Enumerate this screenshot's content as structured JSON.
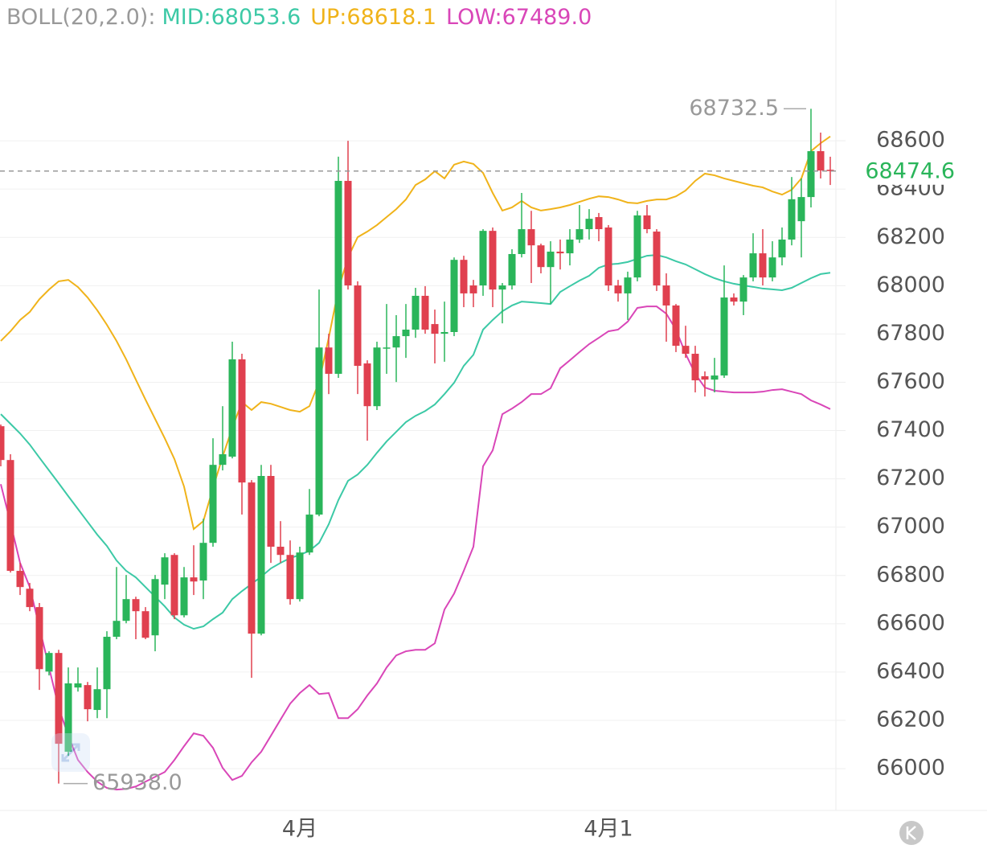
{
  "chart_data": {
    "type": "candlestick",
    "title": "BOLL(20,2.0):",
    "categories": [
      null,
      null,
      null,
      null,
      null,
      null,
      null,
      null,
      null,
      null,
      null,
      null,
      null,
      null,
      null,
      null,
      null,
      null,
      null,
      null,
      null,
      null,
      null,
      null,
      null,
      null,
      null,
      null,
      null,
      null,
      null,
      "4月",
      null,
      null,
      null,
      null,
      null,
      null,
      null,
      null,
      null,
      null,
      null,
      null,
      null,
      null,
      null,
      null,
      null,
      null,
      null,
      null,
      null,
      null,
      null,
      null,
      null,
      null,
      null,
      null,
      null,
      null,
      null,
      "4月1",
      null,
      null,
      null,
      null,
      null,
      null,
      null,
      null,
      null,
      null,
      null,
      null,
      null,
      null,
      null,
      null,
      null,
      null,
      null,
      null,
      null,
      null,
      null
    ],
    "open": [
      67418,
      67278,
      66819,
      66745,
      66669,
      66402,
      66479,
      66070,
      66336,
      66346,
      66243,
      66329,
      66546,
      66612,
      66702,
      66652,
      66552,
      66762,
      66885,
      66635,
      66792,
      66779,
      66935,
      67258,
      67292,
      67695,
      67185,
      66559,
      67212,
      66919,
      66885,
      66702,
      66895,
      67052,
      67744,
      67635,
      68434,
      68001,
      67678,
      67501,
      67741,
      67744,
      67791,
      67818,
      67958,
      67841,
      67801,
      67808,
      68107,
      68001,
      68001,
      68227,
      67984,
      68001,
      68131,
      68234,
      68167,
      68077,
      68141,
      68134,
      68191,
      68234,
      68284,
      68241,
      68001,
      67968,
      68034,
      68291,
      68224,
      68001,
      67918,
      67751,
      67718,
      67625,
      67611,
      67628,
      67951,
      67934,
      68034,
      68134,
      68034,
      68117,
      68191,
      68267,
      68367,
      68557,
      68480
    ],
    "high": [
      67425,
      67302,
      66852,
      66769,
      66686,
      66486,
      66492,
      66419,
      66419,
      66359,
      66419,
      66569,
      66835,
      66802,
      66712,
      66669,
      66802,
      66892,
      66892,
      66835,
      66925,
      67035,
      67368,
      67501,
      67768,
      67718,
      67195,
      67258,
      67258,
      67025,
      66945,
      66919,
      67158,
      67984,
      67801,
      68534,
      68600,
      68018,
      67691,
      67768,
      67924,
      67878,
      67924,
      67991,
      67998,
      67901,
      67934,
      68117,
      68124,
      68024,
      68234,
      68241,
      68011,
      68151,
      68384,
      68310,
      68174,
      68184,
      68191,
      68234,
      68334,
      68317,
      68301,
      68251,
      68024,
      68058,
      68310,
      68334,
      68234,
      68051,
      67924,
      67834,
      67751,
      67645,
      67701,
      68084,
      67968,
      68044,
      68217,
      68234,
      68184,
      68241,
      68450,
      68444,
      68732.5,
      68634,
      68534
    ],
    "low": [
      67252,
      66812,
      66719,
      66652,
      66326,
      66386,
      65938,
      66053,
      66319,
      66196,
      66209,
      66209,
      66536,
      66602,
      66536,
      66536,
      66486,
      66702,
      66619,
      66626,
      66719,
      66702,
      66919,
      67235,
      67285,
      67052,
      66376,
      66552,
      66852,
      66852,
      66679,
      66692,
      66885,
      67045,
      67551,
      67618,
      67984,
      67551,
      67358,
      67485,
      67635,
      67601,
      67701,
      67784,
      67801,
      67678,
      67685,
      67791,
      67911,
      67911,
      67958,
      67911,
      67844,
      67984,
      68117,
      68011,
      68051,
      67924,
      68067,
      68084,
      68177,
      68191,
      68184,
      67978,
      67934,
      67858,
      68018,
      68217,
      67978,
      67768,
      67725,
      67701,
      67558,
      67541,
      67558,
      67618,
      67918,
      67878,
      68018,
      68001,
      68018,
      68084,
      68167,
      68117,
      68324,
      68444,
      68417
    ],
    "close": [
      67278,
      66819,
      66752,
      66669,
      66412,
      66479,
      66103,
      66353,
      66353,
      66246,
      66329,
      66546,
      66612,
      66702,
      66652,
      66542,
      66785,
      66875,
      66635,
      66792,
      66775,
      66935,
      67258,
      67302,
      67695,
      67185,
      66559,
      67212,
      66919,
      66885,
      66702,
      66895,
      67052,
      67744,
      67635,
      68434,
      68001,
      67668,
      67501,
      67744,
      67744,
      67791,
      67818,
      67958,
      67818,
      67801,
      67808,
      68107,
      67968,
      67968,
      68227,
      67984,
      68001,
      68131,
      68234,
      68167,
      68077,
      68141,
      68134,
      68191,
      68234,
      68277,
      68234,
      68001,
      67968,
      68034,
      68291,
      68234,
      68001,
      67918,
      67751,
      67718,
      67608,
      67611,
      67628,
      67951,
      67934,
      68034,
      68134,
      68034,
      68117,
      68191,
      68358,
      68367,
      68557,
      68477,
      68474.6
    ],
    "up_color": "#2ab55a",
    "down_color": "#e0404f",
    "series": [
      {
        "name": "MID:",
        "color": "#3cc9a6",
        "last_label": "68053.6",
        "values": [
          67468,
          67428,
          67388,
          67342,
          67288,
          67235,
          67182,
          67128,
          67075,
          67022,
          66969,
          66922,
          66862,
          66819,
          66792,
          66752,
          66712,
          66672,
          66626,
          66596,
          66579,
          66589,
          66619,
          66646,
          66702,
          66735,
          66765,
          66795,
          66829,
          66852,
          66872,
          66885,
          66902,
          66935,
          67012,
          67112,
          67192,
          67218,
          67258,
          67308,
          67355,
          67395,
          67435,
          67461,
          67481,
          67508,
          67551,
          67598,
          67668,
          67714,
          67818,
          67858,
          67894,
          67918,
          67934,
          67931,
          67928,
          67924,
          67974,
          67998,
          68021,
          68041,
          68074,
          68088,
          68091,
          68098,
          68111,
          68124,
          68127,
          68117,
          68101,
          68088,
          68068,
          68048,
          68031,
          68018,
          68008,
          68001,
          67995,
          67988,
          67985,
          67981,
          67991,
          68011,
          68031,
          68048,
          68053.6
        ]
      },
      {
        "name": "UP:",
        "color": "#f0b31a",
        "last_label": "68618.1",
        "values": [
          67771,
          67811,
          67858,
          67891,
          67944,
          67984,
          68018,
          68024,
          67994,
          67951,
          67898,
          67838,
          67771,
          67695,
          67611,
          67528,
          67448,
          67368,
          67282,
          67168,
          66992,
          67025,
          67162,
          67292,
          67411,
          67518,
          67485,
          67518,
          67511,
          67498,
          67485,
          67478,
          67501,
          67601,
          67784,
          67984,
          68117,
          68201,
          68224,
          68251,
          68284,
          68317,
          68357,
          68417,
          68440,
          68474,
          68444,
          68501,
          68514,
          68504,
          68467,
          68384,
          68311,
          68324,
          68351,
          68324,
          68311,
          68317,
          68324,
          68334,
          68347,
          68360,
          68370,
          68367,
          68357,
          68344,
          68341,
          68351,
          68357,
          68357,
          68370,
          68394,
          68434,
          68464,
          68457,
          68444,
          68434,
          68424,
          68414,
          68407,
          68390,
          68377,
          68397,
          68444,
          68557,
          68590,
          68618.1
        ]
      },
      {
        "name": "LOW:",
        "color": "#d946b8",
        "last_label": "67489.0",
        "values": [
          67178,
          67018,
          66852,
          66752,
          66586,
          66419,
          66253,
          66136,
          66036,
          65986,
          65946,
          65920,
          65913,
          65916,
          65926,
          65946,
          65966,
          65986,
          66036,
          66093,
          66146,
          66136,
          66086,
          66003,
          65953,
          65970,
          66026,
          66070,
          66136,
          66203,
          66269,
          66313,
          66346,
          66309,
          66313,
          66209,
          66209,
          66246,
          66303,
          66353,
          66419,
          66469,
          66486,
          66492,
          66492,
          66519,
          66659,
          66725,
          66819,
          66919,
          67252,
          67318,
          67468,
          67491,
          67518,
          67551,
          67551,
          67575,
          67658,
          67691,
          67725,
          67758,
          67784,
          67811,
          67818,
          67851,
          67908,
          67914,
          67914,
          67884,
          67818,
          67718,
          67635,
          67578,
          67565,
          67561,
          67558,
          67558,
          67558,
          67561,
          67568,
          67571,
          67561,
          67551,
          67525,
          67508,
          67489
        ]
      }
    ],
    "max_label": 68732.5,
    "min_label": {
      "value": 65938,
      "label": "65938.0"
    },
    "last_price": 68474.6,
    "ylim": [
      65827,
      69183
    ],
    "yticks": [
      66000,
      66200,
      66400,
      66600,
      66800,
      67000,
      67200,
      67400,
      67600,
      67800,
      68000,
      68200,
      68400,
      68600
    ],
    "grid": true
  }
}
